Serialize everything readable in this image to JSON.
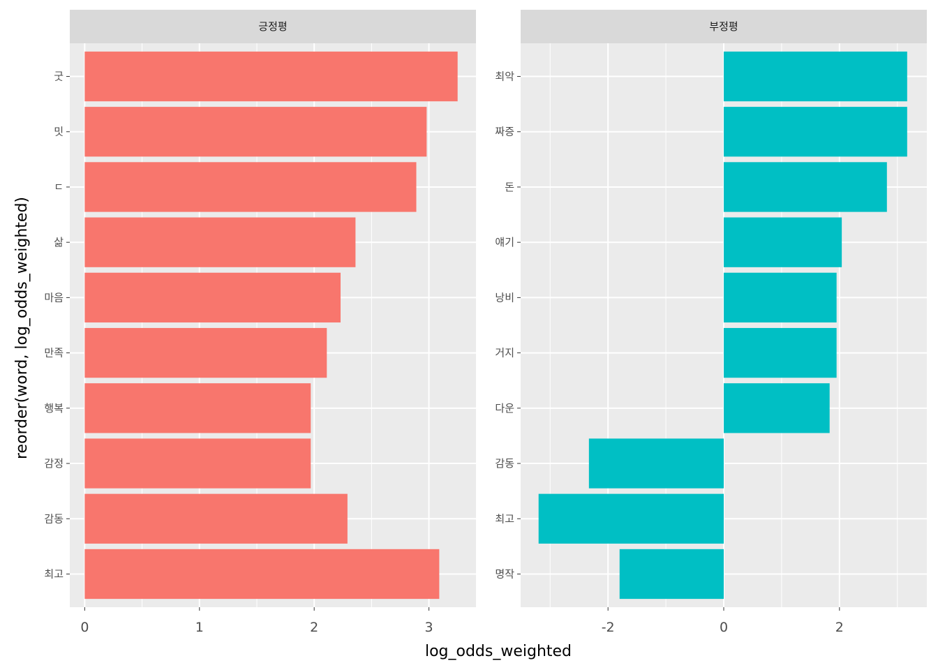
{
  "chart_data": {
    "type": "bar",
    "orientation": "horizontal",
    "xlabel": "log_odds_weighted",
    "ylabel": "reorder(word, log_odds_weighted)",
    "panel_background": "#EBEBEB",
    "strip_background": "#D9D9D9",
    "grid": true,
    "legend": "none",
    "panels": [
      {
        "strip_label": "긍정평",
        "color": "#F8766D",
        "xlim": [
          -0.13,
          3.41
        ],
        "x_ticks": [
          0,
          1,
          2,
          3
        ],
        "categories": [
          "굿",
          "밋",
          "ㄷ",
          "삶",
          "마음",
          "만족",
          "행복",
          "감정",
          "감동",
          "최고"
        ],
        "values": [
          3.25,
          2.98,
          2.89,
          2.36,
          2.23,
          2.11,
          1.97,
          1.97,
          2.29,
          3.09
        ]
      },
      {
        "strip_label": "부정평",
        "color": "#00BFC4",
        "xlim": [
          -3.51,
          3.51
        ],
        "x_ticks": [
          -2,
          0,
          2
        ],
        "categories": [
          "최악",
          "짜증",
          "돈",
          "얘기",
          "낭비",
          "거지",
          "다운",
          "감동",
          "최고",
          "명작"
        ],
        "values": [
          3.17,
          3.17,
          2.82,
          2.04,
          1.95,
          1.95,
          1.83,
          -2.33,
          -3.2,
          -1.8
        ]
      }
    ]
  }
}
